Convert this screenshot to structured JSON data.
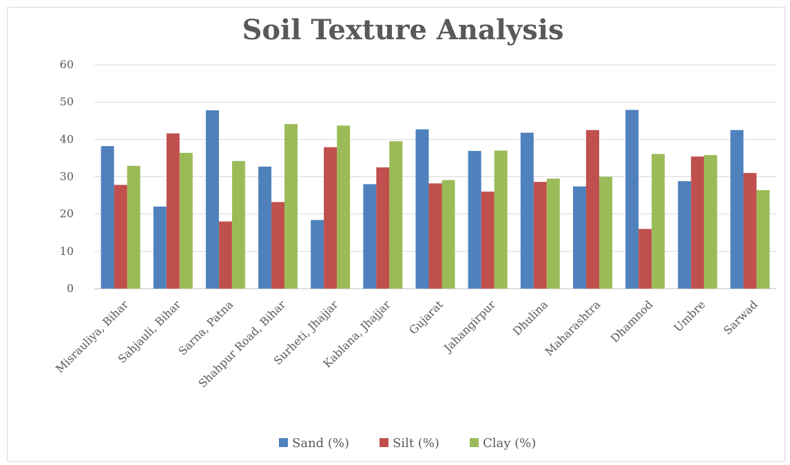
{
  "chart_data": {
    "type": "bar",
    "title": "Soil Texture Analysis",
    "xlabel": "",
    "ylabel": "",
    "ylim": [
      0,
      60
    ],
    "yticks": [
      0,
      10,
      20,
      30,
      40,
      50,
      60
    ],
    "grid": true,
    "legend_position": "bottom",
    "categories": [
      "Misrauliya, Bihar",
      "Sahjauli, Bihar",
      "Sarna, Patna",
      "Shahpur Road, Bihar",
      "Surheti, Jhajjar",
      "Kablana, Jhajjar",
      "Gujarat",
      "Jahangirpur",
      "Dhulina",
      "Maharashtra",
      "Dhamnod",
      "Umbre",
      "Sarwad"
    ],
    "series": [
      {
        "name": "Sand (%)",
        "color": "#4f81bd",
        "values": [
          38.2,
          22,
          47.8,
          32.7,
          18.4,
          28,
          42.7,
          36.9,
          41.8,
          27.4,
          47.9,
          28.8,
          42.5
        ]
      },
      {
        "name": "Silt (%)",
        "color": "#c0504d",
        "values": [
          27.8,
          41.6,
          18,
          23.2,
          37.9,
          32.5,
          28.2,
          26,
          28.6,
          42.5,
          16,
          35.4,
          31
        ]
      },
      {
        "name": "Clay (%)",
        "color": "#9bbb59",
        "values": [
          32.9,
          36.4,
          34.2,
          44.1,
          43.7,
          39.5,
          29.1,
          37,
          29.5,
          30,
          36.1,
          35.8,
          26.4
        ]
      }
    ]
  }
}
